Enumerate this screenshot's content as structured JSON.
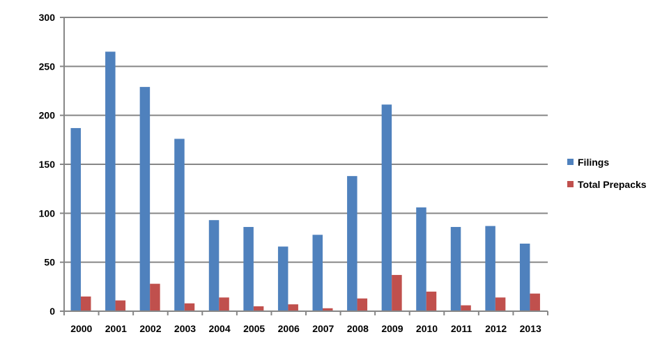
{
  "chart_data": {
    "type": "bar",
    "categories": [
      "2000",
      "2001",
      "2002",
      "2003",
      "2004",
      "2005",
      "2006",
      "2007",
      "2008",
      "2009",
      "2010",
      "2011",
      "2012",
      "2013"
    ],
    "series": [
      {
        "name": "Filings",
        "color": "#4F81BD",
        "values": [
          187,
          265,
          229,
          176,
          93,
          86,
          66,
          78,
          138,
          211,
          106,
          86,
          87,
          69
        ]
      },
      {
        "name": "Total Prepacks",
        "color": "#C0504D",
        "values": [
          15,
          11,
          28,
          8,
          14,
          5,
          7,
          3,
          13,
          37,
          20,
          6,
          14,
          18
        ]
      }
    ],
    "ylim": [
      0,
      300
    ],
    "yticks": [
      0,
      50,
      100,
      150,
      200,
      250,
      300
    ],
    "grid": true,
    "legend_position": "right"
  }
}
